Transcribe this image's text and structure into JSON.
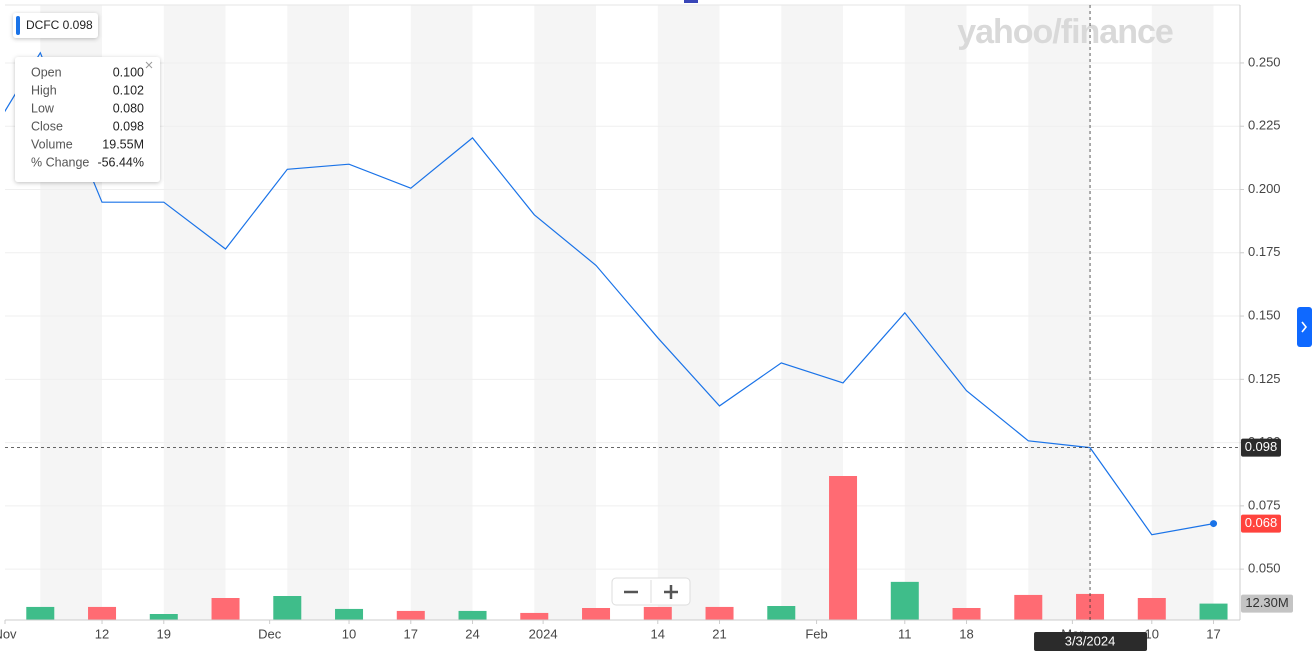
{
  "chart_data": {
    "type": "line",
    "watermark": "yahoo/finance",
    "xlim": [
      "2023-11-01",
      "2024-03-20"
    ],
    "xticks": [
      {
        "value": "2023-11-01",
        "label": "Nov"
      },
      {
        "value": "2023-11-12",
        "label": "12"
      },
      {
        "value": "2023-11-19",
        "label": "19"
      },
      {
        "value": "2023-12-01",
        "label": "Dec"
      },
      {
        "value": "2023-12-10",
        "label": "10"
      },
      {
        "value": "2023-12-17",
        "label": "17"
      },
      {
        "value": "2023-12-24",
        "label": "24"
      },
      {
        "value": "2024-01-01",
        "label": "2024"
      },
      {
        "value": "2024-01-14",
        "label": "14"
      },
      {
        "value": "2024-01-21",
        "label": "21"
      },
      {
        "value": "2024-02-01",
        "label": "Feb"
      },
      {
        "value": "2024-02-11",
        "label": "11"
      },
      {
        "value": "2024-02-18",
        "label": "18"
      },
      {
        "value": "2024-03-01",
        "label": "Mar"
      },
      {
        "value": "2024-03-10",
        "label": "10"
      },
      {
        "value": "2024-03-17",
        "label": "17"
      }
    ],
    "ylim": [
      0.0299,
      0.2729
    ],
    "yticks": [
      {
        "value": 0.05,
        "label": "0.050"
      },
      {
        "value": 0.075,
        "label": "0.075"
      },
      {
        "value": 0.1,
        "label": "0.100"
      },
      {
        "value": 0.125,
        "label": "0.125"
      },
      {
        "value": 0.15,
        "label": "0.150"
      },
      {
        "value": 0.175,
        "label": "0.175"
      },
      {
        "value": 0.2,
        "label": "0.200"
      },
      {
        "value": 0.225,
        "label": "0.225"
      },
      {
        "value": 0.25,
        "label": "0.250"
      }
    ],
    "x": [
      "2023-10-29",
      "2023-11-05",
      "2023-11-12",
      "2023-11-19",
      "2023-11-26",
      "2023-12-03",
      "2023-12-10",
      "2023-12-17",
      "2023-12-24",
      "2023-12-31",
      "2024-01-07",
      "2024-01-14",
      "2024-01-21",
      "2024-01-28",
      "2024-02-04",
      "2024-02-11",
      "2024-02-18",
      "2024-02-25",
      "2024-03-03",
      "2024-03-10",
      "2024-03-17"
    ],
    "series": [
      {
        "name": "DCFC",
        "color": "#1a73e8",
        "values": [
          0.2137,
          0.254,
          0.195,
          0.195,
          0.1765,
          0.208,
          0.21,
          0.2005,
          0.2204,
          0.19,
          0.17,
          0.1414,
          0.1145,
          0.1315,
          0.1236,
          0.1513,
          0.1205,
          0.1007,
          0.098,
          0.0636,
          0.068
        ]
      }
    ],
    "volume": {
      "vlim": [
        0,
        120
      ],
      "values": [
        null,
        9.8,
        9.8,
        4.5,
        16.5,
        18,
        8.3,
        6.8,
        6.8,
        5.3,
        9,
        9.8,
        9.8,
        10.5,
        108,
        28.6,
        9,
        18.8,
        19.55,
        16.5,
        12.3
      ],
      "value_labels": [
        null,
        null,
        null,
        null,
        null,
        null,
        null,
        null,
        null,
        null,
        null,
        null,
        null,
        null,
        null,
        null,
        null,
        null,
        null,
        null,
        "12.30M"
      ],
      "colors": [
        null,
        "#3fbd8a",
        "#ff6b73",
        "#3fbd8a",
        "#ff6b73",
        "#3fbd8a",
        "#3fbd8a",
        "#ff6b73",
        "#3fbd8a",
        "#ff6b73",
        "#ff6b73",
        "#ff6b73",
        "#ff6b73",
        "#3fbd8a",
        "#ff6b73",
        "#3fbd8a",
        "#ff6b73",
        "#ff6b73",
        "#ff6b73",
        "#ff6b73",
        "#3fbd8a"
      ]
    },
    "crosshair": {
      "x": {
        "value": "2024-03-03",
        "label": "3/3/2024"
      },
      "y": 0.098
    },
    "tooltip": [
      [
        "Open",
        "0.100"
      ],
      [
        "High",
        "0.102"
      ],
      [
        "Low",
        "0.080"
      ],
      [
        "Close",
        "0.098"
      ],
      [
        "Volume",
        "19.55M"
      ],
      [
        "% Change",
        "-56.44%"
      ]
    ],
    "grid": true
  }
}
